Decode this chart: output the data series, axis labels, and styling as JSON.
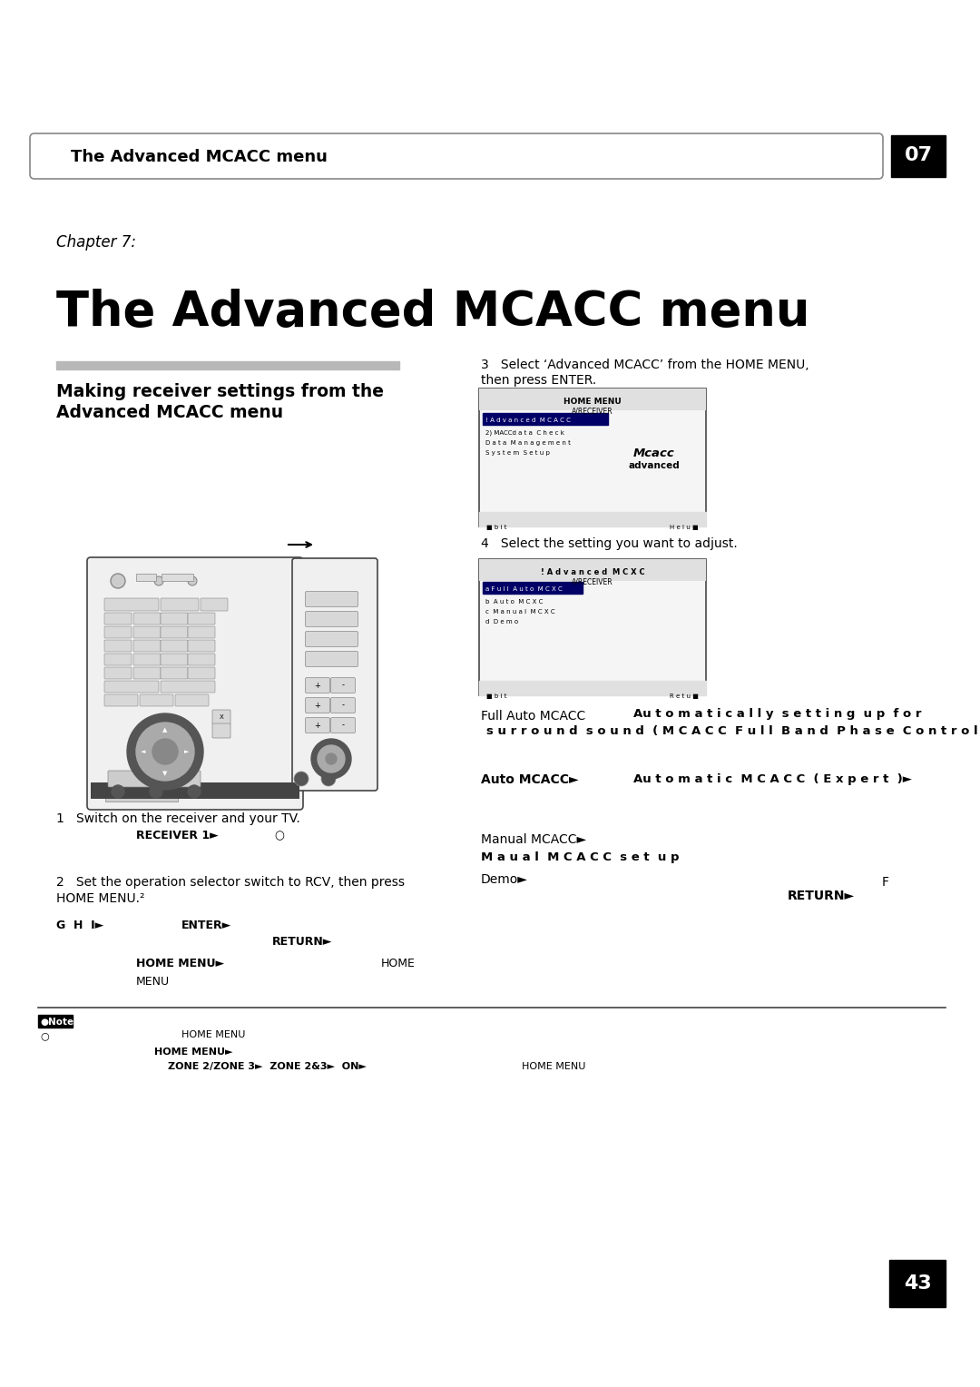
{
  "bg_color": "#ffffff",
  "header_bar_text": "The Advanced MCACC menu",
  "chapter_label": "Chapter 7:",
  "chapter_title": "The Advanced MCACC menu",
  "section_title_1": "Making receiver settings from the",
  "section_title_2": "Advanced MCACC menu",
  "chapter_num": "07",
  "page_num": "43",
  "step3_line1": "3   Select ‘Advanced MCACC’ from the HOME MENU,",
  "step3_line2": "then press ENTER.",
  "step4_text": "4   Select the setting you want to adjust.",
  "step1_text": "1   Switch on the receiver and your TV.",
  "step1_sub": "RECEIVER 1►",
  "step1_circle": "○",
  "step2_line1": "2   Set the operation selector switch to RCV, then press",
  "step2_line2": "HOME MENU.²",
  "step2_letter": "F",
  "step2_GHI": "G  H  I►",
  "step2_ENTER": "ENTER►",
  "step2_RETURN": "RETURN►",
  "step2_HOMEMENU": "HOME MENU►",
  "step2_HOME": "HOME",
  "step2_MENU": "MENU",
  "full_auto_label": "Full Auto MCACC",
  "full_auto_bold1": "Au t o m a t i c a l l y  s e t t i n g  u p  f o r",
  "full_auto_bold2": "s u r r o u n d  s o u n d  ( M C A C C  F u l l  B a n d  P h a s e  C o n t r o l )",
  "auto_label": "Auto MCACC►",
  "auto_desc": "Au t o m a t i c  M C A C C  ( E x p e r t  )►",
  "manual_label": "Manual MCACC►",
  "manual_bold": "M a u a l  M C A C C  s e t  u p",
  "demo_label": "Demo►",
  "return_label": "RETURN►",
  "note_label": "●Note",
  "note_circle": "○",
  "note_txt1": "HOME MENU",
  "note_homemenu": "HOME MENU►",
  "note_zone": "ZONE 2/ZONE 3►  ZONE 2&3►  ON►",
  "note_home2": "HOME MENU",
  "scr1_title": "HOME MENU",
  "scr1_sub": "A/RECEIVER",
  "scr1_item1": "! A d v a n c e d  M C A C C",
  "scr1_item2": "2) MACCd a t a  C h e c k",
  "scr1_item3": "D a t a  M a n a g e m e n t",
  "scr1_item4": "S y s t e m  S e t u p",
  "scr1_logo1": "Mcacc",
  "scr1_logo2": "advanced",
  "scr1_bit": "■ b i t",
  "scr1_help": "H e l u ■",
  "scr2_title": "! A d v a n c e d  M C X C",
  "scr2_sub": "A/RECEIVER",
  "scr2_item1": "a F u l l  A u t o  M C X C",
  "scr2_item2": "b  A u t o  M C X C",
  "scr2_item3": "c  M a n u a l  M C X C",
  "scr2_item4": "d  D e m o",
  "scr2_bit": "■ b i t",
  "scr2_help": "R e t u ■",
  "arrow_right": "►"
}
